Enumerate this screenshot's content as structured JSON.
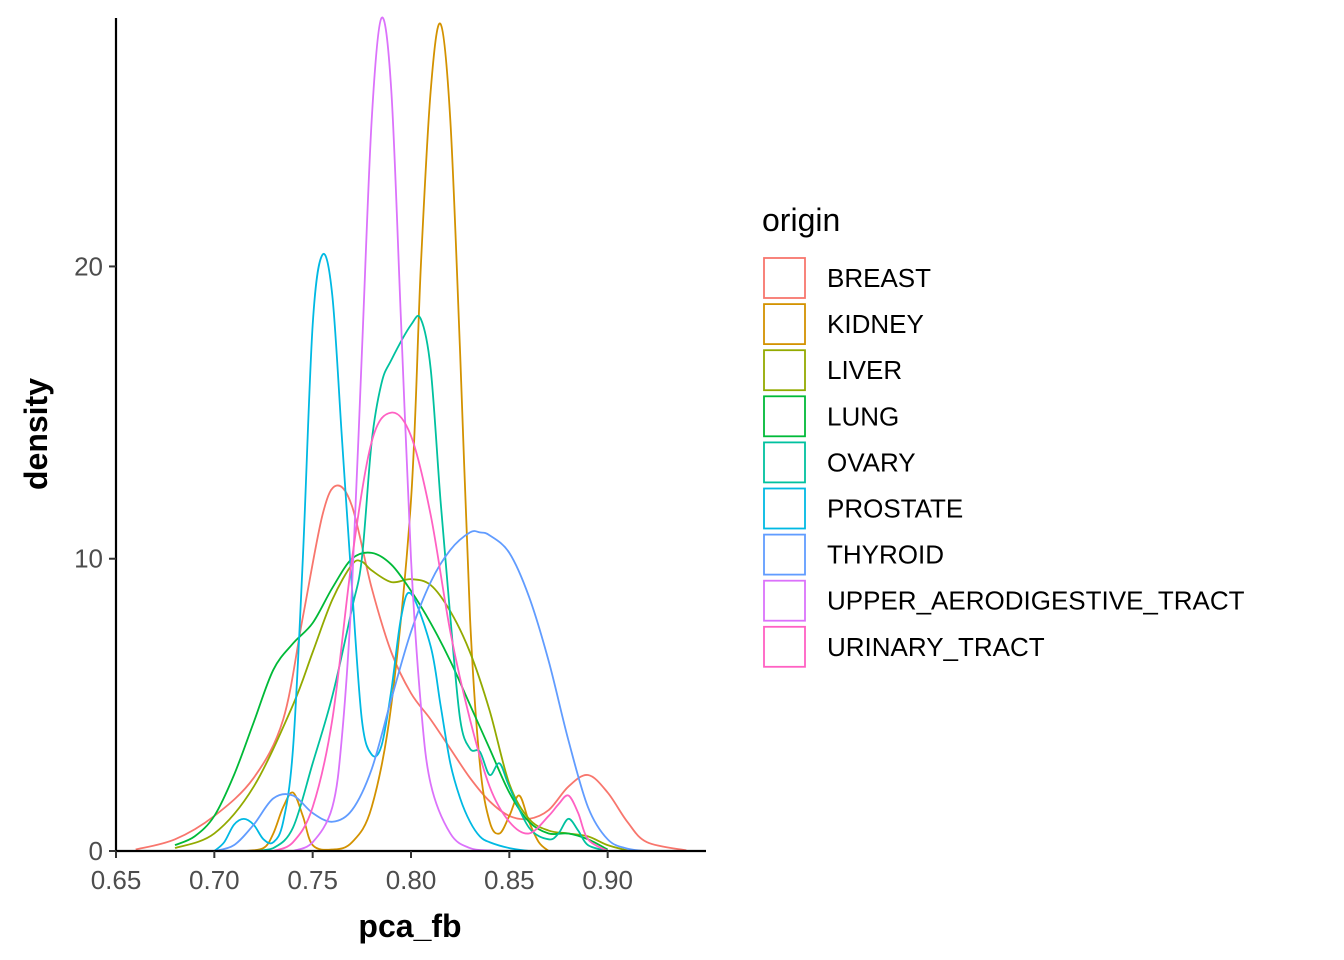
{
  "chart_data": {
    "type": "line",
    "title": "",
    "xlabel": "pca_fb",
    "ylabel": "density",
    "xlim": [
      0.65,
      0.95
    ],
    "ylim": [
      0,
      28.5
    ],
    "x_ticks": [
      "0.65",
      "0.70",
      "0.75",
      "0.80",
      "0.85",
      "0.90"
    ],
    "y_ticks": [
      "0",
      "10",
      "20"
    ],
    "grid": false,
    "legend_title": "origin",
    "legend_position": "right",
    "series": [
      {
        "name": "BREAST",
        "color": "#F8766D",
        "x": [
          0.66,
          0.68,
          0.7,
          0.72,
          0.735,
          0.745,
          0.755,
          0.762,
          0.77,
          0.78,
          0.79,
          0.8,
          0.81,
          0.82,
          0.83,
          0.84,
          0.85,
          0.86,
          0.87,
          0.88,
          0.89,
          0.9,
          0.91,
          0.92,
          0.94
        ],
        "y": [
          0.05,
          0.4,
          1.2,
          2.5,
          4.5,
          8,
          11.5,
          12.5,
          11.8,
          9,
          6.8,
          5.4,
          4.5,
          3.5,
          2.5,
          1.7,
          1.2,
          1.1,
          1.4,
          2.2,
          2.6,
          2.0,
          1.0,
          0.3,
          0.02
        ]
      },
      {
        "name": "KIDNEY",
        "color": "#D39200",
        "x": [
          0.715,
          0.725,
          0.73,
          0.735,
          0.74,
          0.745,
          0.75,
          0.76,
          0.77,
          0.78,
          0.79,
          0.8,
          0.805,
          0.81,
          0.815,
          0.82,
          0.825,
          0.83,
          0.835,
          0.84,
          0.845,
          0.85,
          0.855,
          0.86,
          0.865,
          0.87
        ],
        "y": [
          0,
          0.1,
          0.6,
          1.5,
          2.0,
          1.2,
          0.2,
          0.05,
          0.3,
          1.5,
          5,
          12,
          20,
          26,
          28.3,
          25,
          17,
          8,
          3,
          1,
          0.6,
          1.2,
          1.9,
          1.0,
          0.3,
          0
        ]
      },
      {
        "name": "LIVER",
        "color": "#93AA00",
        "x": [
          0.68,
          0.7,
          0.72,
          0.74,
          0.75,
          0.76,
          0.77,
          0.775,
          0.78,
          0.79,
          0.8,
          0.81,
          0.82,
          0.83,
          0.84,
          0.85,
          0.86,
          0.87,
          0.88,
          0.89,
          0.9,
          0.91
        ],
        "y": [
          0.1,
          0.6,
          2.2,
          5,
          6.8,
          8.6,
          9.8,
          9.9,
          9.6,
          9.2,
          9.3,
          9.1,
          8.2,
          6.8,
          4.8,
          2.3,
          1.1,
          0.7,
          0.6,
          0.5,
          0.2,
          0.02
        ]
      },
      {
        "name": "LUNG",
        "color": "#00BA38",
        "x": [
          0.68,
          0.69,
          0.7,
          0.71,
          0.72,
          0.73,
          0.74,
          0.75,
          0.76,
          0.77,
          0.78,
          0.79,
          0.8,
          0.81,
          0.82,
          0.83,
          0.84,
          0.85,
          0.86,
          0.87,
          0.88,
          0.89,
          0.9
        ],
        "y": [
          0.2,
          0.5,
          1.2,
          2.6,
          4.4,
          6.2,
          7.1,
          7.8,
          9.0,
          10.0,
          10.2,
          9.8,
          8.9,
          7.8,
          6.5,
          5.0,
          3.5,
          2.0,
          1.0,
          0.6,
          0.6,
          0.4,
          0.05
        ]
      },
      {
        "name": "OVARY",
        "color": "#00C19F",
        "x": [
          0.72,
          0.73,
          0.74,
          0.75,
          0.76,
          0.77,
          0.775,
          0.78,
          0.785,
          0.79,
          0.8,
          0.805,
          0.81,
          0.815,
          0.82,
          0.825,
          0.83,
          0.835,
          0.84,
          0.845,
          0.85,
          0.86,
          0.87,
          0.875,
          0.88,
          0.885,
          0.89,
          0.9
        ],
        "y": [
          0,
          0.1,
          0.8,
          3,
          5.3,
          8.3,
          10,
          14,
          16,
          16.8,
          18,
          18.2,
          16.5,
          12,
          8,
          4.5,
          3.5,
          3.4,
          2.6,
          3.0,
          2.2,
          0.8,
          0.4,
          0.6,
          1.1,
          0.7,
          0.2,
          0
        ]
      },
      {
        "name": "PROSTATE",
        "color": "#00B9E3",
        "x": [
          0.7,
          0.705,
          0.71,
          0.715,
          0.72,
          0.725,
          0.73,
          0.735,
          0.74,
          0.745,
          0.75,
          0.755,
          0.76,
          0.765,
          0.77,
          0.775,
          0.78,
          0.785,
          0.79,
          0.795,
          0.8,
          0.81,
          0.815,
          0.82,
          0.825,
          0.83,
          0.835,
          0.84,
          0.85,
          0.86
        ],
        "y": [
          0,
          0.3,
          0.9,
          1.1,
          0.9,
          0.4,
          0.3,
          1.0,
          3.5,
          10,
          18,
          20.4,
          19,
          14,
          9,
          4.5,
          3.3,
          3.6,
          5.5,
          8,
          8.8,
          7,
          5,
          3,
          1.8,
          1.0,
          0.5,
          0.3,
          0.1,
          0
        ]
      },
      {
        "name": "THYROID",
        "color": "#619CFF",
        "x": [
          0.7,
          0.71,
          0.72,
          0.73,
          0.74,
          0.75,
          0.76,
          0.77,
          0.78,
          0.79,
          0.8,
          0.81,
          0.82,
          0.83,
          0.835,
          0.84,
          0.85,
          0.86,
          0.87,
          0.88,
          0.89,
          0.9,
          0.91,
          0.92
        ],
        "y": [
          0,
          0.2,
          0.9,
          1.8,
          1.9,
          1.3,
          1.0,
          1.4,
          2.8,
          5.2,
          7.5,
          9.2,
          10.3,
          10.9,
          10.9,
          10.8,
          10.2,
          8.7,
          6.5,
          3.8,
          1.5,
          0.4,
          0.08,
          0
        ]
      },
      {
        "name": "UPPER_AERODIGESTIVE_TRACT",
        "color": "#DB72FB",
        "x": [
          0.74,
          0.75,
          0.76,
          0.765,
          0.77,
          0.775,
          0.78,
          0.785,
          0.79,
          0.795,
          0.8,
          0.805,
          0.81,
          0.82,
          0.83,
          0.84,
          0.85
        ],
        "y": [
          0,
          0.3,
          1.5,
          4,
          9,
          17,
          25,
          28.5,
          26,
          18,
          10,
          5,
          2.3,
          0.6,
          0.1,
          0.02,
          0
        ]
      },
      {
        "name": "URINARY_TRACT",
        "color": "#FF61C3",
        "x": [
          0.73,
          0.74,
          0.75,
          0.76,
          0.77,
          0.78,
          0.79,
          0.8,
          0.81,
          0.82,
          0.83,
          0.84,
          0.85,
          0.86,
          0.87,
          0.875,
          0.88,
          0.885,
          0.89,
          0.9
        ],
        "y": [
          0,
          0.3,
          1.5,
          4.5,
          10,
          14,
          15,
          14.2,
          11.5,
          7.5,
          4.5,
          2.2,
          1.0,
          0.6,
          1.2,
          1.6,
          1.9,
          1.3,
          0.4,
          0
        ]
      }
    ]
  }
}
